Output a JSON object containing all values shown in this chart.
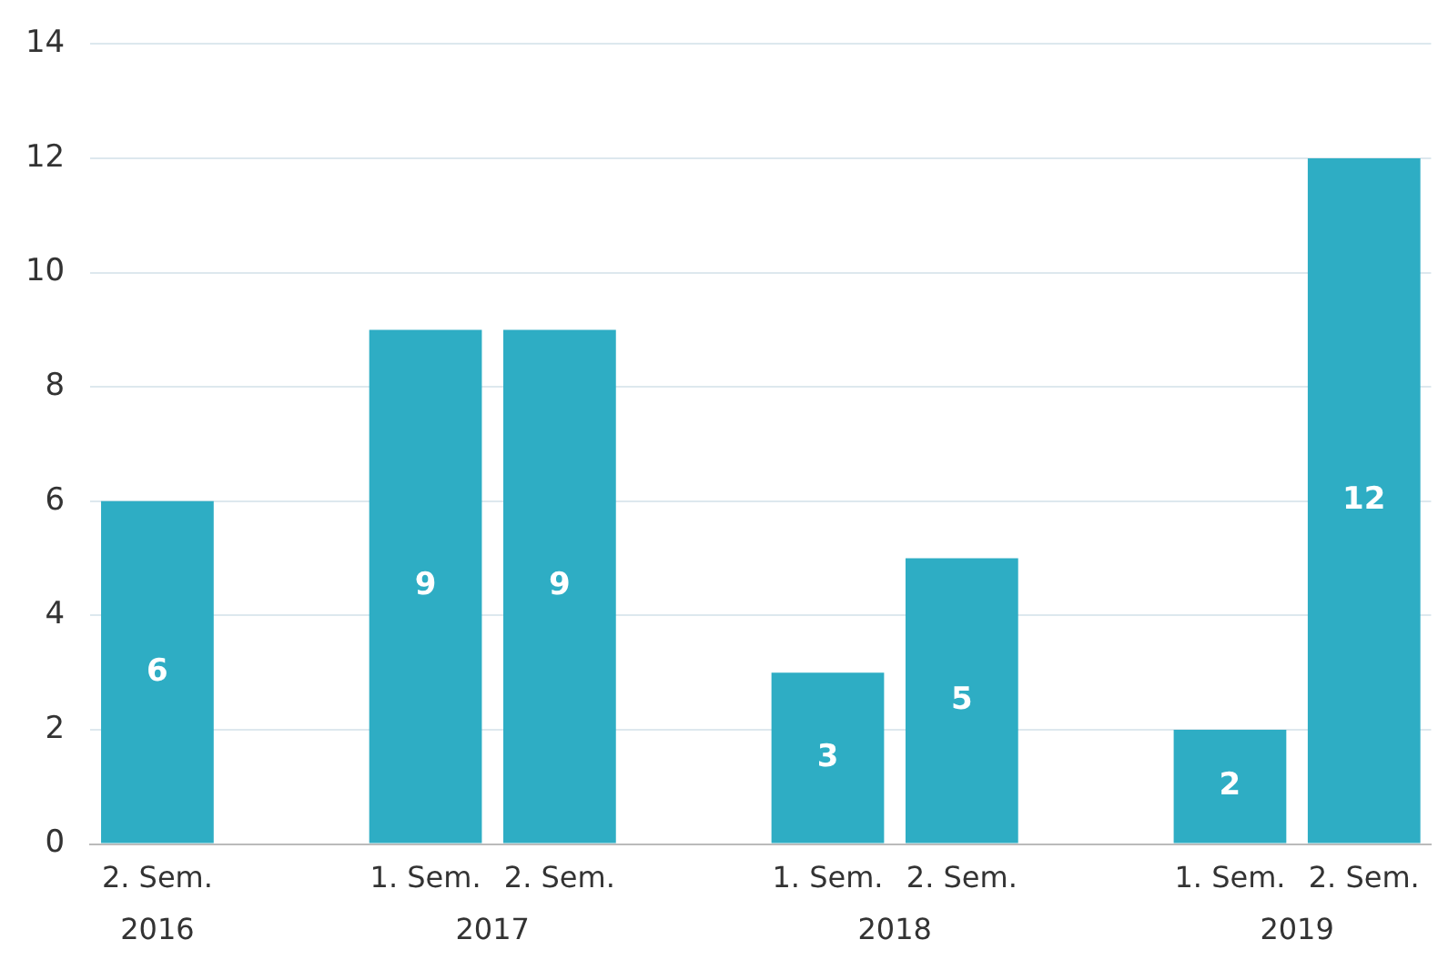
{
  "chart_data": {
    "type": "bar",
    "categories": [
      "2. Sem.",
      null,
      "1. Sem.",
      "2. Sem.",
      null,
      "1. Sem.",
      "2. Sem.",
      null,
      "1. Sem.",
      "2. Sem."
    ],
    "values": [
      6,
      null,
      9,
      9,
      null,
      3,
      5,
      null,
      2,
      12
    ],
    "color": "#2eadc4",
    "annotations": [
      "2016",
      "2017",
      "2018",
      "2019"
    ],
    "ylim": [
      0,
      14
    ],
    "yticks": [
      0,
      2,
      4,
      6,
      8,
      10,
      12,
      14
    ],
    "grid": "y",
    "legend": false,
    "data_labels": true
  }
}
